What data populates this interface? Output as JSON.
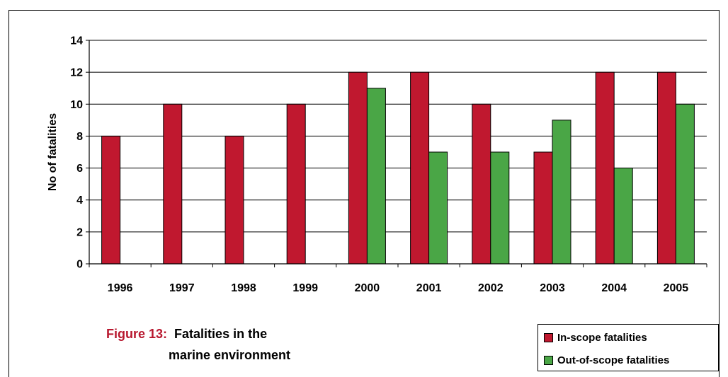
{
  "chart_data": {
    "type": "bar",
    "categories": [
      "1996",
      "1997",
      "1998",
      "1999",
      "2000",
      "2001",
      "2002",
      "2003",
      "2004",
      "2005"
    ],
    "series": [
      {
        "name": "In-scope fatalities",
        "values": [
          8,
          10,
          8,
          10,
          12,
          12,
          10,
          7,
          12,
          12
        ],
        "color": "#c0182f"
      },
      {
        "name": "Out-of-scope fatalities",
        "values": [
          null,
          null,
          null,
          null,
          11,
          7,
          7,
          9,
          6,
          10
        ],
        "color": "#4aa646"
      }
    ],
    "ylabel": "No of fatalities",
    "ylim": [
      0,
      14
    ],
    "yticks": [
      "0",
      "2",
      "4",
      "6",
      "8",
      "10",
      "12",
      "14"
    ],
    "grid": true,
    "legend_position": "bottom-right"
  },
  "caption": {
    "number": "Figure 13:",
    "title_line1": "Fatalities in the",
    "title_line2": "marine environment"
  },
  "legend": {
    "in_scope": "In-scope fatalities",
    "out_scope": "Out-of-scope fatalities"
  }
}
